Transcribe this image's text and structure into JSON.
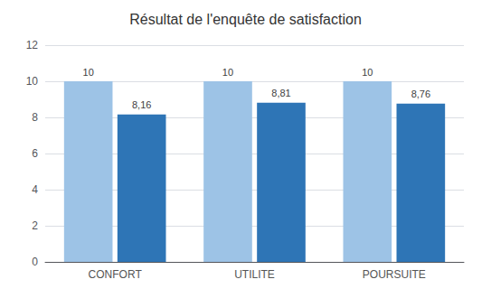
{
  "chart_data": {
    "type": "bar",
    "title": "Résultat de l'enquête de satisfaction",
    "categories": [
      "CONFORT",
      "UTILITE",
      "POURSUITE"
    ],
    "series": [
      {
        "color": "#9dc3e6",
        "values": [
          10,
          10,
          10
        ],
        "value_labels": [
          "10",
          "10",
          "10"
        ]
      },
      {
        "color": "#2e75b6",
        "values": [
          8.16,
          8.81,
          8.76
        ],
        "value_labels": [
          "8,16",
          "8,81",
          "8,76"
        ]
      }
    ],
    "ylim": [
      0,
      12
    ],
    "yticks": [
      0,
      2,
      4,
      6,
      8,
      10,
      12
    ],
    "grid": true,
    "data_labels": true
  }
}
